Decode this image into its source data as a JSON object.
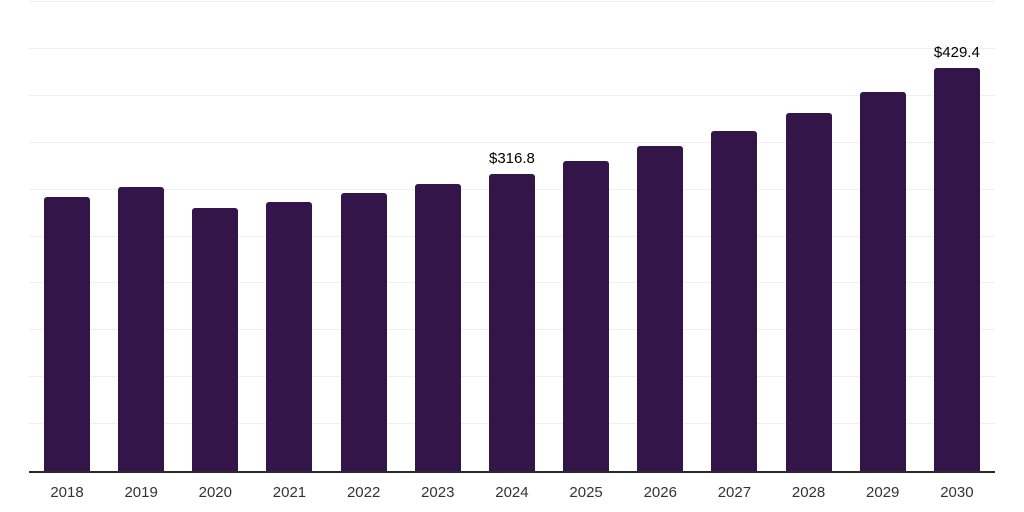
{
  "chart_data": {
    "type": "bar",
    "title": "",
    "xlabel": "",
    "ylabel": "",
    "categories": [
      "2018",
      "2019",
      "2020",
      "2021",
      "2022",
      "2023",
      "2024",
      "2025",
      "2026",
      "2027",
      "2028",
      "2029",
      "2030"
    ],
    "values": [
      292,
      303,
      280,
      287,
      296,
      306,
      316.8,
      331,
      347,
      363,
      382,
      404,
      429.4
    ],
    "value_labels": [
      "",
      "",
      "",
      "",
      "",
      "",
      "$316.8",
      "",
      "",
      "",
      "",
      "",
      "$429.4"
    ],
    "ylim": [
      0,
      500
    ],
    "grid_step": 50,
    "grid": true,
    "legend": false,
    "colors": {
      "bar": "#341549",
      "grid": "#efefef",
      "axis": "#2b2b2b",
      "tick_label": "#333333",
      "value_label": "#000000",
      "background": "#ffffff"
    }
  }
}
